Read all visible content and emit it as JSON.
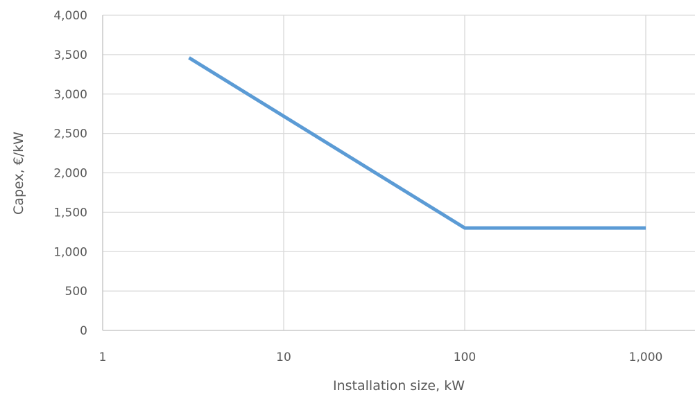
{
  "chart_data": {
    "type": "line",
    "title": "",
    "xlabel": "Installation size, kW",
    "ylabel": "Capex, €/kW",
    "x_scale": "log",
    "xlim": [
      1,
      1000
    ],
    "ylim": [
      0,
      4000
    ],
    "x_ticks": [
      1,
      10,
      100,
      1000
    ],
    "x_tick_labels": [
      "1",
      "10",
      "100",
      "1,000"
    ],
    "y_ticks": [
      0,
      500,
      1000,
      1500,
      2000,
      2500,
      3000,
      3500,
      4000
    ],
    "y_tick_labels": [
      "0",
      "500",
      "1,000",
      "1,500",
      "2,000",
      "2,500",
      "3,000",
      "3,500",
      "4,000"
    ],
    "grid": true,
    "legend": "none",
    "series": [
      {
        "color": "#5b9bd5",
        "x": [
          3,
          100,
          1000
        ],
        "y": [
          3460,
          1300,
          1300
        ]
      }
    ]
  }
}
